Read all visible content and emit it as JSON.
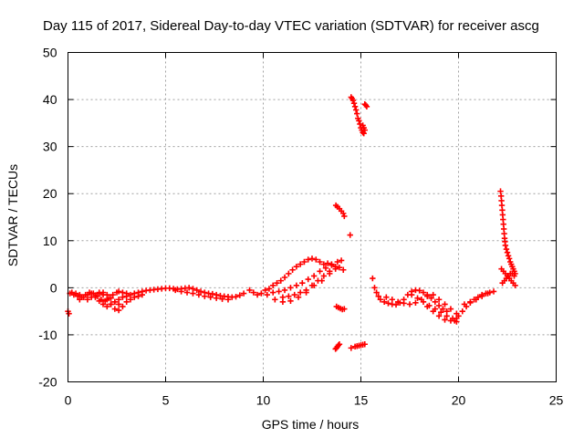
{
  "chart_data": {
    "type": "scatter",
    "title": "Day 115 of 2017, Sidereal Day-to-day VTEC variation (SDTVAR) for receiver ascg",
    "xlabel": "GPS time / hours",
    "ylabel": "SDTVAR / TECUs",
    "xlim": [
      0,
      25
    ],
    "ylim": [
      -20,
      50
    ],
    "xticks": [
      0,
      5,
      10,
      15,
      20,
      25
    ],
    "yticks": [
      -20,
      -10,
      0,
      10,
      20,
      30,
      40,
      50
    ],
    "xtick_labels": [
      "0",
      "5",
      "10",
      "15",
      "20",
      "25"
    ],
    "ytick_labels": [
      "-20",
      "-10",
      "0",
      "10",
      "20",
      "30",
      "40",
      "50"
    ],
    "grid": true,
    "marker": "plus",
    "color": "#ff0000",
    "series": [
      {
        "name": "SDTVAR",
        "x": [
          0.0,
          0.05,
          0.1,
          0.3,
          0.5,
          0.7,
          0.9,
          1.1,
          1.3,
          1.5,
          1.7,
          1.9,
          2.1,
          2.3,
          2.5,
          0.2,
          0.4,
          0.6,
          0.8,
          1.0,
          1.2,
          1.4,
          1.6,
          1.8,
          2.0,
          2.2,
          2.4,
          2.6,
          0.6,
          0.8,
          1.0,
          1.2,
          1.4,
          1.6,
          1.8,
          2.0,
          2.2,
          2.4,
          2.6,
          2.8,
          3.0,
          1.6,
          1.8,
          2.0,
          2.2,
          2.4,
          2.6,
          2.8,
          3.0,
          3.2,
          3.4,
          3.6,
          3.8,
          2.6,
          2.8,
          3.0,
          3.2,
          3.4,
          3.6,
          3.8,
          4.0,
          4.2,
          4.4,
          4.6,
          4.8,
          5.0,
          5.2,
          5.4,
          5.6,
          5.8,
          6.0,
          6.2,
          6.4,
          6.6,
          6.8,
          7.0,
          7.2,
          7.4,
          7.6,
          7.8,
          8.0,
          8.2,
          8.4,
          8.6,
          8.8,
          9.0,
          5.5,
          5.8,
          6.1,
          6.4,
          6.7,
          7.0,
          7.3,
          7.6,
          7.9,
          8.2,
          9.3,
          9.5,
          9.7,
          9.9,
          10.1,
          10.3,
          10.5,
          10.7,
          10.9,
          11.1,
          11.3,
          11.5,
          11.7,
          11.9,
          12.1,
          12.3,
          12.5,
          12.7,
          12.9,
          13.1,
          13.3,
          13.5,
          13.7,
          13.9,
          14.1,
          10.5,
          10.8,
          11.1,
          11.4,
          11.7,
          12.0,
          12.3,
          12.6,
          12.9,
          13.2,
          13.5,
          13.8,
          14.0,
          11.0,
          11.3,
          11.6,
          11.9,
          12.2,
          12.5,
          12.8,
          13.1,
          13.4,
          13.7,
          10.2,
          10.6,
          11.0,
          11.4,
          11.8,
          12.2,
          12.6,
          13.0,
          13.4,
          13.7,
          13.72,
          13.8,
          13.9,
          14.0,
          14.1,
          14.15,
          13.75,
          13.85,
          13.95,
          14.05,
          14.15,
          13.7,
          13.75,
          13.8,
          13.85,
          13.9,
          14.45,
          14.5,
          14.7,
          14.8,
          14.9,
          15.0,
          15.1,
          15.2,
          14.5,
          14.55,
          14.6,
          14.65,
          14.7,
          14.75,
          14.8,
          14.85,
          14.9,
          14.95,
          15.0,
          15.05,
          15.1,
          15.15,
          15.2,
          15.25,
          15.3,
          15.1,
          15.15,
          15.2,
          15.6,
          15.7,
          15.8,
          15.9,
          16.0,
          16.2,
          16.4,
          16.6,
          16.8,
          17.0,
          17.2,
          17.4,
          17.6,
          17.8,
          18.0,
          18.2,
          18.4,
          18.6,
          18.8,
          19.0,
          19.2,
          19.4,
          16.3,
          16.6,
          16.9,
          17.2,
          17.5,
          17.8,
          18.1,
          18.4,
          18.7,
          19.0,
          19.3,
          19.6,
          19.9,
          17.6,
          17.9,
          18.2,
          18.5,
          18.8,
          19.1,
          19.4,
          19.7,
          19.8,
          19.9,
          18.4,
          18.7,
          19.0,
          19.3,
          19.6,
          19.9,
          20.0,
          20.2,
          20.4,
          20.6,
          20.8,
          21.0,
          21.2,
          21.4,
          21.6,
          21.8,
          20.3,
          20.6,
          20.9,
          21.2,
          21.5,
          22.15,
          22.18,
          22.2,
          22.22,
          22.24,
          22.26,
          22.28,
          22.3,
          22.32,
          22.34,
          22.36,
          22.38,
          22.4,
          22.45,
          22.5,
          22.55,
          22.6,
          22.65,
          22.7,
          22.75,
          22.8,
          22.85,
          22.9,
          22.2,
          22.3,
          22.4,
          22.5,
          22.6,
          22.7,
          22.8,
          22.9,
          22.25,
          22.35,
          22.45,
          22.55,
          22.65,
          22.75,
          22.85
        ],
        "y": [
          -5.0,
          -5.5,
          -1.2,
          -1.5,
          -1.8,
          -2.0,
          -1.5,
          -1.0,
          -1.2,
          -1.8,
          -2.5,
          -2.8,
          -2.2,
          -1.5,
          -1.0,
          -1.0,
          -1.2,
          -1.5,
          -2.0,
          -2.5,
          -2.0,
          -1.6,
          -1.2,
          -1.0,
          -1.5,
          -2.2,
          -3.0,
          -3.5,
          -2.5,
          -2.0,
          -1.5,
          -1.2,
          -2.0,
          -2.8,
          -3.5,
          -4.0,
          -3.5,
          -3.0,
          -2.5,
          -2.0,
          -1.8,
          -1.0,
          -1.5,
          -2.5,
          -3.5,
          -4.5,
          -4.8,
          -4.0,
          -3.0,
          -2.5,
          -2.0,
          -1.8,
          -1.5,
          -0.8,
          -1.0,
          -1.2,
          -1.5,
          -1.2,
          -1.0,
          -0.8,
          -0.6,
          -0.5,
          -0.4,
          -0.3,
          -0.2,
          -0.1,
          -0.1,
          -0.2,
          -0.3,
          -0.2,
          -0.1,
          0.0,
          -0.2,
          -0.5,
          -0.8,
          -1.0,
          -1.2,
          -1.3,
          -1.5,
          -1.7,
          -1.8,
          -1.9,
          -2.0,
          -1.9,
          -1.6,
          -1.2,
          -0.5,
          -0.8,
          -1.0,
          -1.2,
          -1.5,
          -1.8,
          -2.0,
          -2.2,
          -2.4,
          -2.5,
          -0.5,
          -1.0,
          -1.5,
          -1.2,
          -0.5,
          -0.2,
          0.5,
          1.0,
          1.5,
          2.2,
          3.0,
          3.8,
          4.5,
          5.0,
          5.5,
          6.0,
          6.2,
          6.0,
          5.5,
          5.0,
          5.2,
          4.8,
          4.5,
          4.3,
          3.8,
          -1.0,
          -0.8,
          -0.5,
          0.0,
          0.5,
          1.0,
          1.8,
          2.5,
          3.5,
          4.2,
          5.0,
          5.5,
          5.8,
          -2.0,
          -1.8,
          -1.5,
          -1.0,
          -0.5,
          0.5,
          1.5,
          2.5,
          3.5,
          4.5,
          -1.5,
          -2.5,
          -3.0,
          -2.8,
          -2.0,
          -1.0,
          0.5,
          1.5,
          3.0,
          4.0,
          17.5,
          17.2,
          16.8,
          16.3,
          15.8,
          15.2,
          -4.0,
          -4.2,
          -4.4,
          -4.6,
          -4.5,
          -13.0,
          -12.8,
          -12.5,
          -12.2,
          -12.0,
          11.2,
          -12.8,
          -12.5,
          -12.4,
          -12.3,
          -12.2,
          -12.1,
          -12.0,
          40.5,
          40.2,
          39.8,
          39.2,
          38.5,
          37.8,
          37.0,
          36.0,
          35.5,
          34.8,
          34.0,
          33.5,
          33.0,
          32.8,
          39.0,
          38.8,
          38.5,
          34.5,
          34.0,
          33.5,
          2.0,
          0.0,
          -1.0,
          -1.8,
          -2.5,
          -3.0,
          -3.3,
          -3.5,
          -3.6,
          -3.2,
          -2.5,
          -1.5,
          -0.8,
          -0.5,
          -0.6,
          -1.0,
          -1.5,
          -2.2,
          -3.0,
          -3.8,
          -4.5,
          -5.0,
          -2.0,
          -2.5,
          -3.0,
          -3.3,
          -3.5,
          -3.2,
          -2.5,
          -1.8,
          -1.5,
          -2.5,
          -3.5,
          -4.5,
          -5.5,
          -1.5,
          -2.2,
          -3.0,
          -3.8,
          -4.5,
          -5.2,
          -6.0,
          -6.5,
          -7.0,
          -7.2,
          -4.0,
          -5.0,
          -6.0,
          -6.8,
          -7.0,
          -6.5,
          -6.0,
          -5.0,
          -4.0,
          -3.2,
          -2.5,
          -2.0,
          -1.5,
          -1.2,
          -1.0,
          -0.8,
          -3.5,
          -3.0,
          -2.5,
          -1.8,
          -1.2,
          20.5,
          19.5,
          18.5,
          17.5,
          16.5,
          15.5,
          14.5,
          13.5,
          12.5,
          11.5,
          10.5,
          9.8,
          9.0,
          8.2,
          7.5,
          6.8,
          6.2,
          5.5,
          5.0,
          4.5,
          4.0,
          3.5,
          3.0,
          4.0,
          3.5,
          3.0,
          2.5,
          2.0,
          1.5,
          1.0,
          0.5,
          1.0,
          1.5,
          2.0,
          2.5,
          3.0,
          3.0,
          2.5
        ]
      }
    ]
  }
}
